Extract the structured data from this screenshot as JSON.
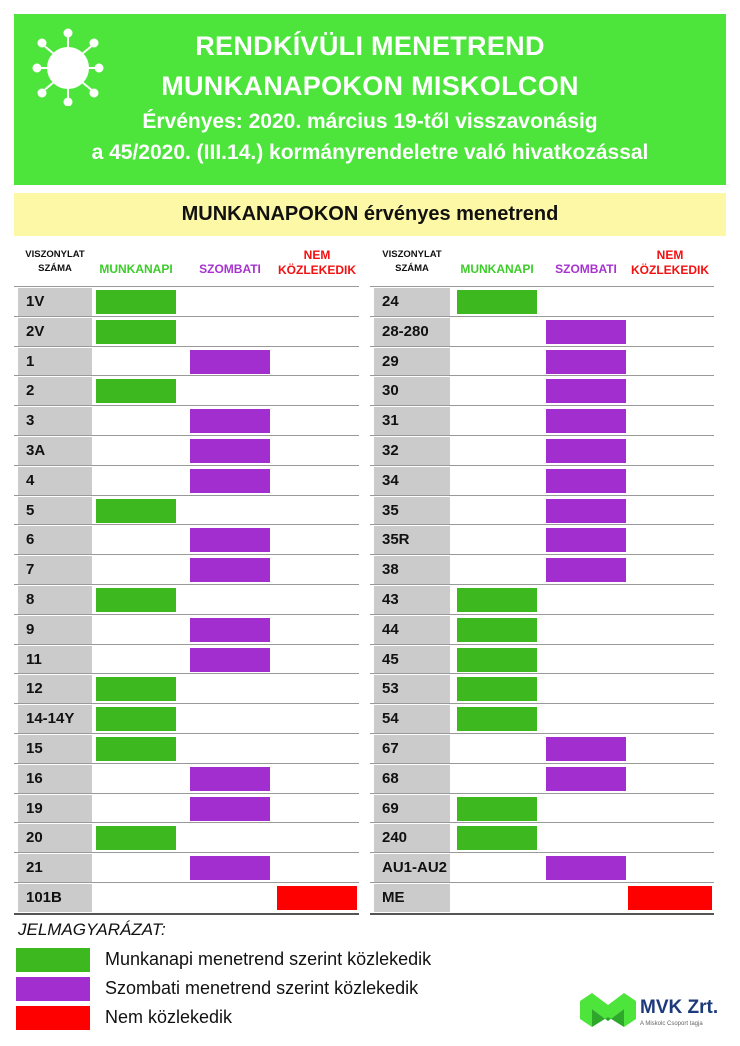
{
  "header": {
    "title1": "RENDKÍVÜLI MENETREND",
    "title2": "MUNKANAPOKON MISKOLCON",
    "line3": "Érvényes: 2020. március 19-től  visszavonásig",
    "line4": "a 45/2020. (III.14.) kormányrendeletre való hivatkozással",
    "icon": "virus-icon"
  },
  "subtitle": "MUNKANAPOKON érvényes menetrend",
  "columns": {
    "route_line1": "VISZONYLAT",
    "route_line2": "SZÁMA",
    "workday": "MUNKANAPI",
    "saturday": "SZOMBATI",
    "none_line1": "NEM",
    "none_line2": "KÖZLEKEDIK"
  },
  "colors": {
    "workday": "#3db81e",
    "saturday": "#a32ecf",
    "none": "#ff0000",
    "header": "#4de53c",
    "subtitle": "#fdf8a6"
  },
  "left_routes": [
    {
      "route": "1V",
      "schedule": "workday"
    },
    {
      "route": "2V",
      "schedule": "workday"
    },
    {
      "route": "1",
      "schedule": "saturday"
    },
    {
      "route": "2",
      "schedule": "workday"
    },
    {
      "route": "3",
      "schedule": "saturday"
    },
    {
      "route": "3A",
      "schedule": "saturday"
    },
    {
      "route": "4",
      "schedule": "saturday"
    },
    {
      "route": "5",
      "schedule": "workday"
    },
    {
      "route": "6",
      "schedule": "saturday"
    },
    {
      "route": "7",
      "schedule": "saturday"
    },
    {
      "route": "8",
      "schedule": "workday"
    },
    {
      "route": "9",
      "schedule": "saturday"
    },
    {
      "route": "11",
      "schedule": "saturday"
    },
    {
      "route": "12",
      "schedule": "workday"
    },
    {
      "route": "14-14Y",
      "schedule": "workday"
    },
    {
      "route": "15",
      "schedule": "workday"
    },
    {
      "route": "16",
      "schedule": "saturday"
    },
    {
      "route": "19",
      "schedule": "saturday"
    },
    {
      "route": "20",
      "schedule": "workday"
    },
    {
      "route": "21",
      "schedule": "saturday"
    },
    {
      "route": "101B",
      "schedule": "none"
    }
  ],
  "right_routes": [
    {
      "route": "24",
      "schedule": "workday"
    },
    {
      "route": "28-280",
      "schedule": "saturday"
    },
    {
      "route": "29",
      "schedule": "saturday"
    },
    {
      "route": "30",
      "schedule": "saturday"
    },
    {
      "route": "31",
      "schedule": "saturday"
    },
    {
      "route": "32",
      "schedule": "saturday"
    },
    {
      "route": "34",
      "schedule": "saturday"
    },
    {
      "route": "35",
      "schedule": "saturday"
    },
    {
      "route": "35R",
      "schedule": "saturday"
    },
    {
      "route": "38",
      "schedule": "saturday"
    },
    {
      "route": "43",
      "schedule": "workday"
    },
    {
      "route": "44",
      "schedule": "workday"
    },
    {
      "route": "45",
      "schedule": "workday"
    },
    {
      "route": "53",
      "schedule": "workday"
    },
    {
      "route": "54",
      "schedule": "workday"
    },
    {
      "route": "67",
      "schedule": "saturday"
    },
    {
      "route": "68",
      "schedule": "saturday"
    },
    {
      "route": "69",
      "schedule": "workday"
    },
    {
      "route": "240",
      "schedule": "workday"
    },
    {
      "route": "AU1-AU2",
      "schedule": "saturday"
    },
    {
      "route": "ME",
      "schedule": "none"
    }
  ],
  "legend": {
    "title": "JELMAGYARÁZAT:",
    "workday": "Munkanapi menetrend szerint közlekedik",
    "saturday": "Szombati menetrend szerint közlekedik",
    "none": "Nem közlekedik"
  },
  "logo": {
    "name": "MVK Zrt.",
    "tagline": "A Miskolc Csoport tagja"
  }
}
